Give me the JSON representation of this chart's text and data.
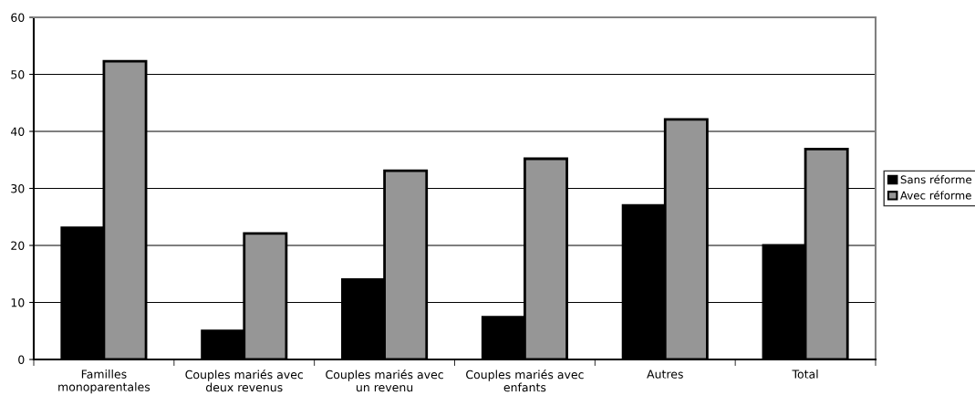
{
  "chart_data": {
    "type": "bar",
    "categories": [
      "Familles\nmonoparentales",
      "Couples mariés avec\ndeux revenus",
      "Couples mariés avec\nun revenu",
      "Couples mariés avec\nenfants",
      "Autres",
      "Total"
    ],
    "series": [
      {
        "name": "Sans réforme",
        "color": "#000000",
        "values": [
          23.1,
          5,
          14,
          7.4,
          27,
          20
        ]
      },
      {
        "name": "Avec réforme",
        "color": "#969696",
        "values": [
          52.3,
          22.1,
          33.1,
          35.2,
          42.1,
          36.9
        ]
      }
    ],
    "ylim": [
      0,
      60
    ],
    "yticks": [
      0,
      10,
      20,
      30,
      40,
      50,
      60
    ],
    "grid": "y",
    "legend": "right"
  }
}
